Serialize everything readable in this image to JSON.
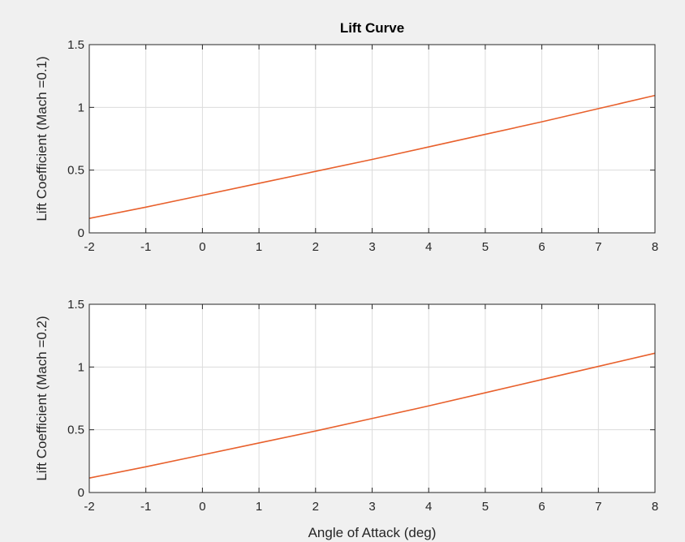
{
  "figure": {
    "background": "#f0f0f0",
    "axes_background": "#ffffff",
    "line_color": "#e8602c",
    "grid_color": "#dcdcdc",
    "axis_color": "#262626"
  },
  "chart_data": [
    {
      "type": "line",
      "title": "Lift Curve",
      "xlabel": "",
      "ylabel": "Lift Coefficient (Mach =0.1)",
      "xlim": [
        -2,
        8
      ],
      "ylim": [
        0,
        1.5
      ],
      "xticks": [
        -2,
        -1,
        0,
        1,
        2,
        3,
        4,
        5,
        6,
        7,
        8
      ],
      "yticks": [
        0,
        0.5,
        1,
        1.5
      ],
      "xtick_labels": [
        "-2",
        "-1",
        "0",
        "1",
        "2",
        "3",
        "4",
        "5",
        "6",
        "7",
        "8"
      ],
      "ytick_labels": [
        "0",
        "0.5",
        "1",
        "1.5"
      ],
      "grid": true,
      "series": [
        {
          "x": [
            -2,
            -1,
            0,
            1,
            2,
            3,
            4,
            5,
            6,
            7,
            8
          ],
          "y": [
            0.115,
            0.205,
            0.3,
            0.395,
            0.49,
            0.585,
            0.685,
            0.785,
            0.885,
            0.99,
            1.095
          ]
        }
      ]
    },
    {
      "type": "line",
      "title": "",
      "xlabel": "Angle of Attack (deg)",
      "ylabel": "Lift Coefficient (Mach =0.2)",
      "xlim": [
        -2,
        8
      ],
      "ylim": [
        0,
        1.5
      ],
      "xticks": [
        -2,
        -1,
        0,
        1,
        2,
        3,
        4,
        5,
        6,
        7,
        8
      ],
      "yticks": [
        0,
        0.5,
        1,
        1.5
      ],
      "xtick_labels": [
        "-2",
        "-1",
        "0",
        "1",
        "2",
        "3",
        "4",
        "5",
        "6",
        "7",
        "8"
      ],
      "ytick_labels": [
        "0",
        "0.5",
        "1",
        "1.5"
      ],
      "grid": true,
      "series": [
        {
          "x": [
            -2,
            -1,
            0,
            1,
            2,
            3,
            4,
            5,
            6,
            7,
            8
          ],
          "y": [
            0.115,
            0.205,
            0.3,
            0.395,
            0.49,
            0.59,
            0.69,
            0.795,
            0.9,
            1.005,
            1.11
          ]
        }
      ]
    }
  ]
}
